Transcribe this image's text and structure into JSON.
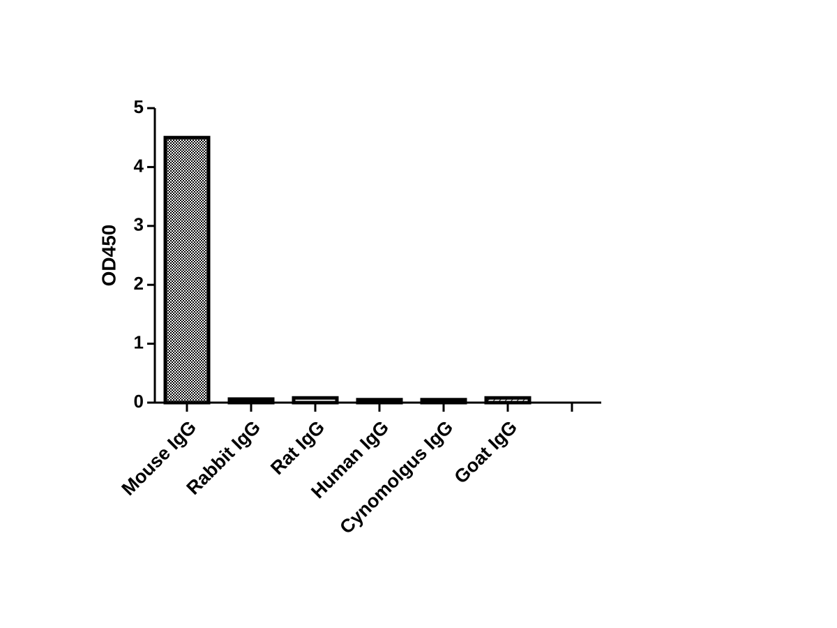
{
  "chart_data": {
    "type": "bar",
    "y_label": "OD450",
    "categories": [
      "Mouse IgG",
      "Rabbit IgG",
      "Rat IgG",
      "Human IgG",
      "Cynomolgus IgG",
      "Goat IgG",
      null
    ],
    "values": [
      4.5,
      0.06,
      0.08,
      0.05,
      0.05,
      0.08,
      null
    ],
    "color": "#000000",
    "ylim": [
      0,
      5
    ],
    "yticks": [
      0,
      1,
      2,
      3,
      4,
      5
    ],
    "grid": false
  }
}
